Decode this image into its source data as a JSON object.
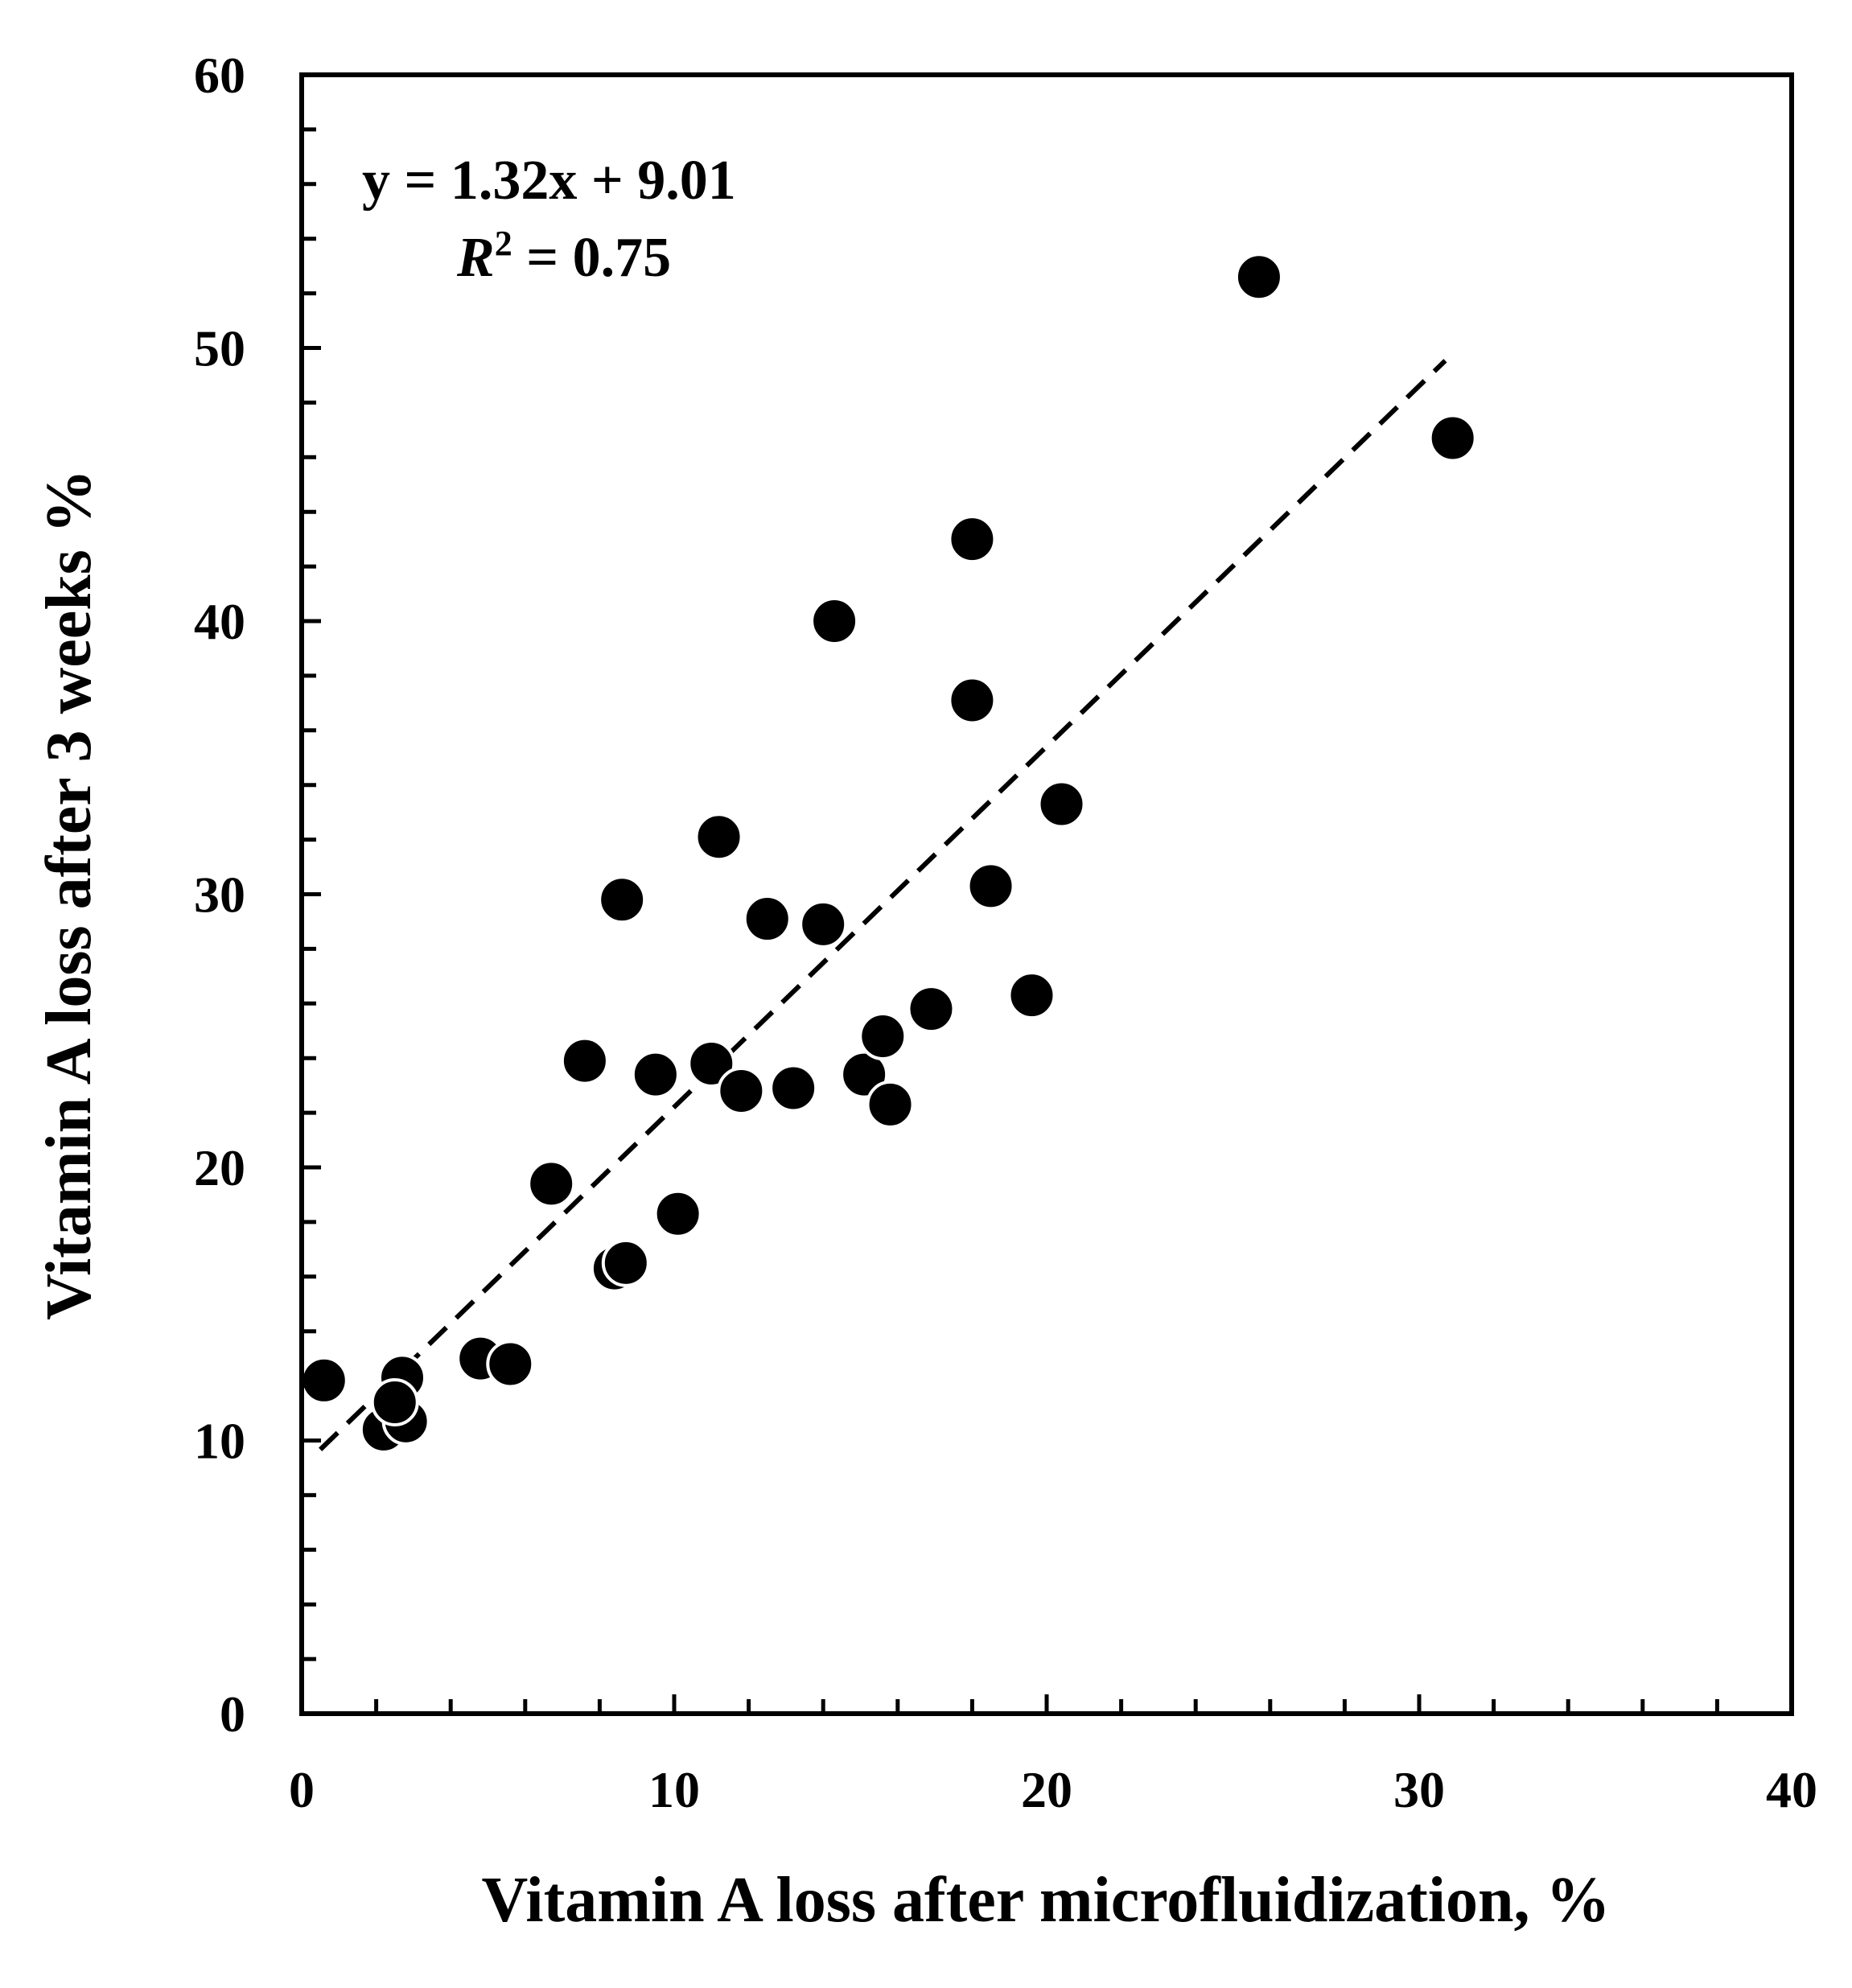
{
  "chart_data": {
    "type": "scatter",
    "title": "",
    "xlabel": "Vitamin A loss after microfluidization, %",
    "ylabel": "Vitamin A loss after 3 weeks  %",
    "xlim": [
      0,
      40
    ],
    "ylim": [
      0,
      60
    ],
    "x_ticks": [
      "0",
      "10",
      "20",
      "30",
      "40"
    ],
    "y_ticks": [
      "0",
      "10",
      "20",
      "30",
      "40",
      "50",
      "60"
    ],
    "x_minor_step": 2,
    "y_minor_step": 2,
    "grid": false,
    "legend": "none",
    "point_color": "#000000",
    "trendline": {
      "slope": 1.32,
      "intercept": 9.01,
      "x_range": [
        0.5,
        30.7
      ],
      "style": "dashed",
      "color": "#000000"
    },
    "annotation": {
      "equation": "y = 1.32x + 9.01",
      "r2_symbol": "R",
      "r2_sup": "2",
      "r2_value": " = 0.75"
    },
    "points": [
      {
        "x": 0.6,
        "y": 12.2
      },
      {
        "x": 2.2,
        "y": 10.4
      },
      {
        "x": 2.8,
        "y": 10.7
      },
      {
        "x": 2.7,
        "y": 12.3
      },
      {
        "x": 2.5,
        "y": 11.4
      },
      {
        "x": 4.8,
        "y": 13.0
      },
      {
        "x": 5.6,
        "y": 12.8
      },
      {
        "x": 6.7,
        "y": 19.4
      },
      {
        "x": 7.6,
        "y": 23.9
      },
      {
        "x": 8.4,
        "y": 16.3
      },
      {
        "x": 8.7,
        "y": 16.5
      },
      {
        "x": 8.6,
        "y": 29.8
      },
      {
        "x": 9.5,
        "y": 23.4
      },
      {
        "x": 10.1,
        "y": 18.3
      },
      {
        "x": 11.0,
        "y": 23.8
      },
      {
        "x": 11.2,
        "y": 32.1
      },
      {
        "x": 11.8,
        "y": 22.8
      },
      {
        "x": 12.5,
        "y": 29.1
      },
      {
        "x": 13.2,
        "y": 22.9
      },
      {
        "x": 14.0,
        "y": 28.9
      },
      {
        "x": 14.3,
        "y": 40.0
      },
      {
        "x": 15.1,
        "y": 23.4
      },
      {
        "x": 15.6,
        "y": 24.8
      },
      {
        "x": 15.8,
        "y": 22.3
      },
      {
        "x": 16.9,
        "y": 25.8
      },
      {
        "x": 18.0,
        "y": 43.0
      },
      {
        "x": 18.0,
        "y": 37.1
      },
      {
        "x": 18.5,
        "y": 30.3
      },
      {
        "x": 19.6,
        "y": 26.3
      },
      {
        "x": 20.4,
        "y": 33.3
      },
      {
        "x": 25.7,
        "y": 52.6
      },
      {
        "x": 30.9,
        "y": 46.7
      }
    ]
  }
}
